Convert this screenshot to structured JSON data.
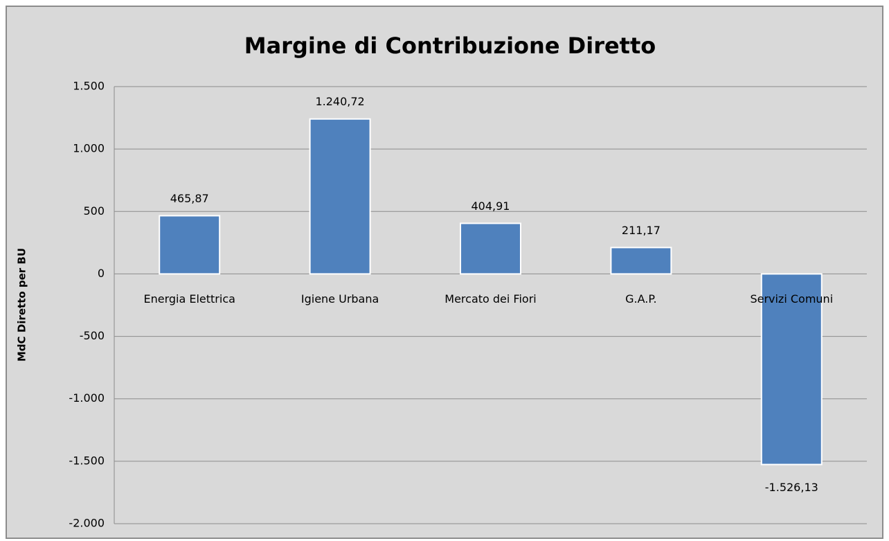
{
  "chart_data": {
    "type": "bar",
    "title": "Margine di Contribuzione Diretto",
    "y_label": "MdC Diretto per BU",
    "categories": [
      "Energia Elettrica",
      "Igiene Urbana",
      "Mercato dei Fiori",
      "G.A.P.",
      "Servizi Comuni"
    ],
    "values": [
      465.87,
      1240.72,
      404.91,
      211.17,
      -1526.13
    ],
    "value_labels": [
      "465,87",
      "1.240,72",
      "404,91",
      "211,17",
      "-1.526,13"
    ],
    "color": "#4f81bd",
    "ylim": [
      -2000,
      1500
    ],
    "yticks": [
      {
        "value": -2000,
        "label": "-2.000"
      },
      {
        "value": -1500,
        "label": "-1.500"
      },
      {
        "value": -1000,
        "label": "-1.000"
      },
      -500,
      0,
      500,
      {
        "value": 1000,
        "label": "1.000"
      },
      {
        "value": 1500,
        "label": "1.500"
      }
    ],
    "grid": true
  }
}
